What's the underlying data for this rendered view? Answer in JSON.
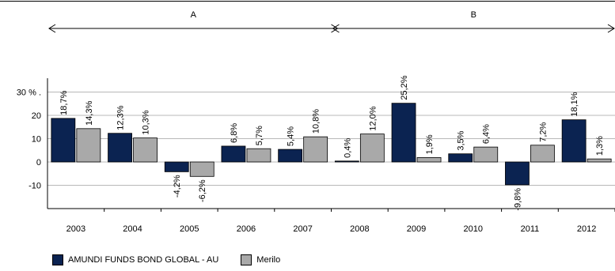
{
  "chart_data": {
    "type": "bar",
    "categories": [
      "2003",
      "2004",
      "2005",
      "2006",
      "2007",
      "2008",
      "2009",
      "2010",
      "2011",
      "2012"
    ],
    "series": [
      {
        "name": "AMUNDI FUNDS BOND GLOBAL - AU",
        "color": "#0b2351",
        "values": [
          18.7,
          12.3,
          -4.2,
          6.8,
          5.4,
          0.4,
          25.2,
          3.5,
          -9.8,
          18.1
        ],
        "labels": [
          "18,7%",
          "12,3%",
          "-4,2%",
          "6,8%",
          "5,4%",
          "0,4%",
          "25,2%",
          "3,5%",
          "-9,8%",
          "18,1%"
        ]
      },
      {
        "name": "Merilo",
        "color": "#a9a9a9",
        "values": [
          14.3,
          10.3,
          -6.2,
          5.7,
          10.8,
          12.0,
          1.9,
          6.4,
          7.2,
          1.3
        ],
        "labels": [
          "14,3%",
          "10,3%",
          "-6,2%",
          "5,7%",
          "10,8%",
          "12,0%",
          "1,9%",
          "6,4%",
          "7,2%",
          "1,3%"
        ]
      }
    ],
    "yticks": [
      30,
      20,
      10,
      0,
      -10
    ],
    "ytick_labels": [
      "30 % .",
      "20",
      "10",
      "0",
      "-10"
    ],
    "ylim": [
      -20,
      30
    ],
    "grid": true,
    "legend_position": "bottom-left",
    "periods": [
      {
        "label": "A",
        "from": "2003",
        "to": "2007"
      },
      {
        "label": "B",
        "from": "2008",
        "to": "2012"
      }
    ]
  }
}
